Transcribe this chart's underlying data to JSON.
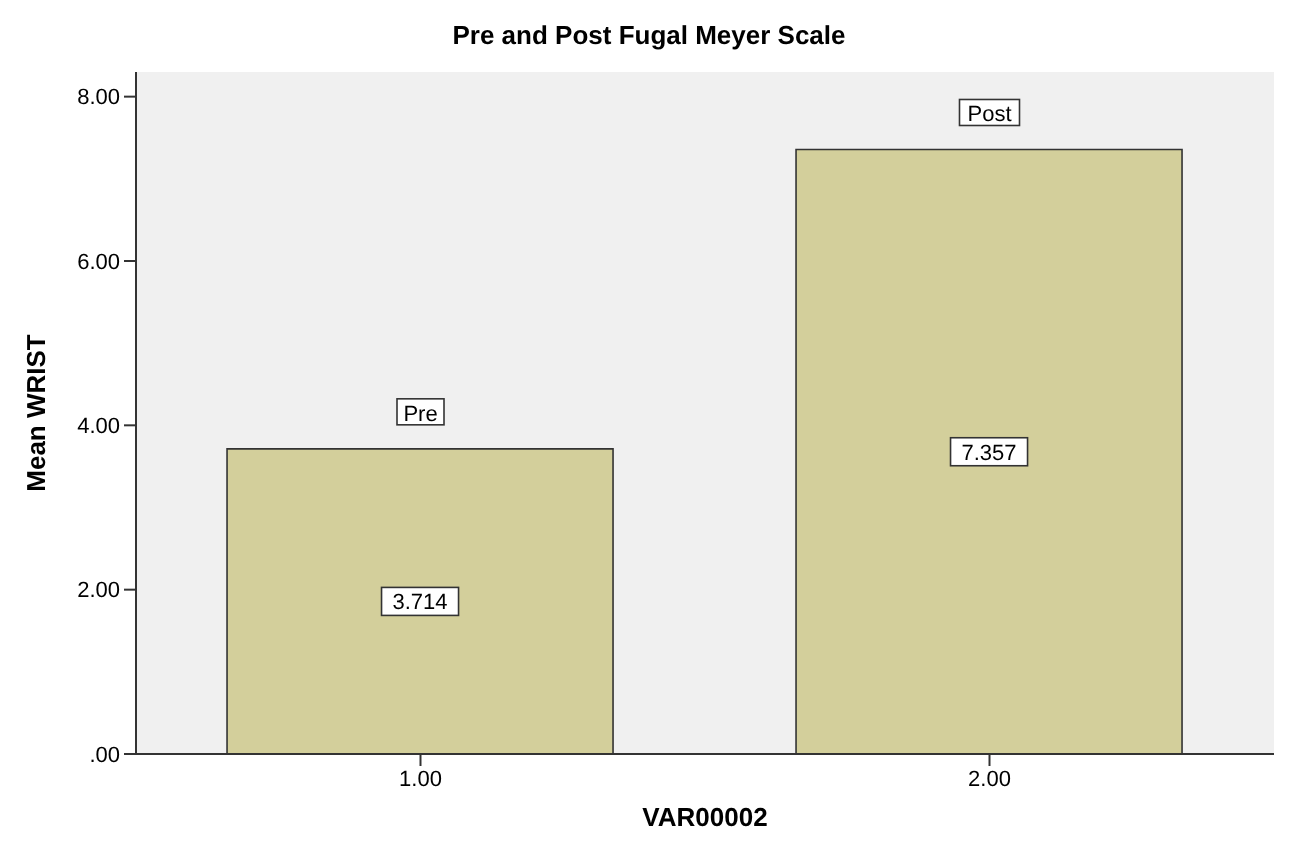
{
  "chart_data": {
    "type": "bar",
    "title": "Pre and Post Fugal Meyer Scale",
    "xlabel": "VAR00002",
    "ylabel": "Mean WRIST",
    "categories": [
      "1.00",
      "2.00"
    ],
    "values": [
      3.714,
      7.357
    ],
    "color": "#d3cf9b",
    "data_labels": true,
    "ylim": [
      0,
      8.3
    ],
    "yticks": [
      {
        "value": 0,
        "label": ".00"
      },
      {
        "value": 2,
        "label": "2.00"
      },
      {
        "value": 4,
        "label": "4.00"
      },
      {
        "value": 6,
        "label": "6.00"
      },
      {
        "value": 8,
        "label": "8.00"
      }
    ],
    "annotations": [
      {
        "text": "Pre",
        "x": "1.00",
        "y": 3.714
      },
      {
        "text": "Post",
        "x": "2.00",
        "y": 7.357
      }
    ],
    "grid": false
  }
}
